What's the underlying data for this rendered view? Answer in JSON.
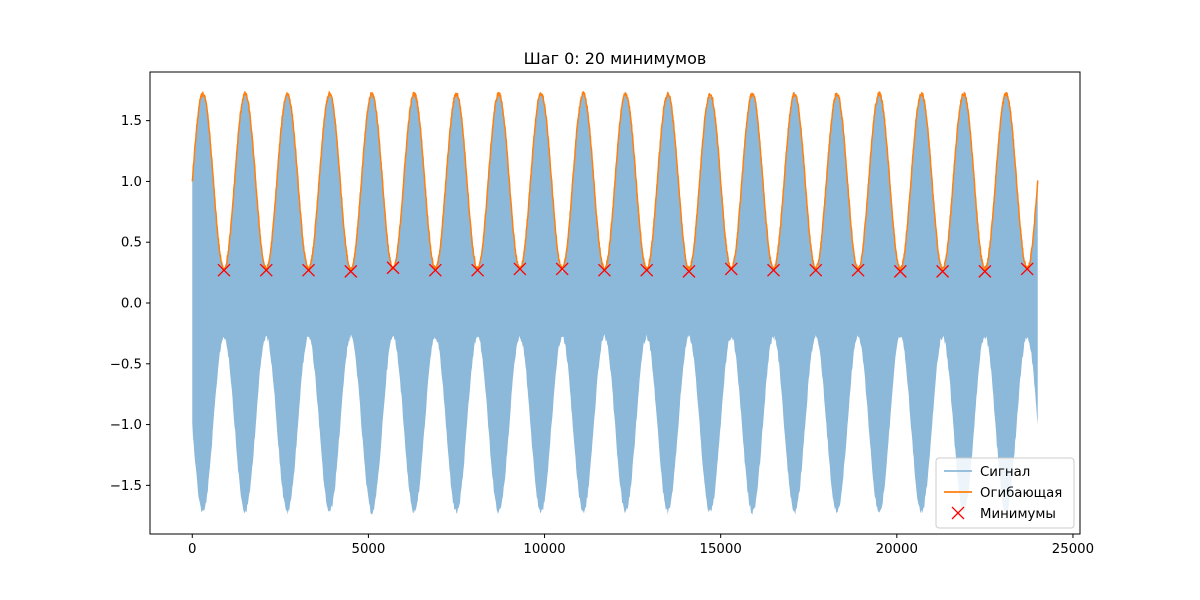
{
  "chart_data": {
    "type": "line",
    "title": "Шаг 0: 20 минимумов",
    "xlabel": "",
    "ylabel": "",
    "xlim": [
      -1200,
      25200
    ],
    "ylim": [
      -1.9,
      1.9
    ],
    "x_ticks": [
      0,
      5000,
      10000,
      15000,
      20000,
      25000
    ],
    "x_tick_labels": [
      "0",
      "5000",
      "10000",
      "15000",
      "20000",
      "25000"
    ],
    "y_ticks": [
      -1.5,
      -1.0,
      -0.5,
      0.0,
      0.5,
      1.0,
      1.5
    ],
    "y_tick_labels": [
      "−1.5",
      "−1.0",
      "−0.5",
      "0.0",
      "0.5",
      "1.0",
      "1.5"
    ],
    "grid": false,
    "legend_position": "lower-right",
    "colors": {
      "signal": "#8cb8d9",
      "envelope": "#ff7f0e",
      "minima": "#ff0000"
    },
    "series": [
      {
        "name": "Сигнал",
        "kind": "filled-oscillation",
        "x_start": 0,
        "x_end": 24000,
        "envelope_period": 1200,
        "envelope_mean": 1.0,
        "envelope_amplitude": 0.72,
        "envelope_phase": "peak-at-300"
      },
      {
        "name": "Огибающая",
        "kind": "line",
        "x_start": 0,
        "x_end": 24000,
        "period": 1200,
        "mean": 1.0,
        "amplitude": 0.72,
        "start_value": 1.0,
        "end_value": 1.0
      },
      {
        "name": "Минимумы",
        "kind": "markers",
        "marker": "x",
        "x": [
          900,
          2100,
          3300,
          4500,
          5700,
          6900,
          8100,
          9300,
          10500,
          11700,
          12900,
          14100,
          15300,
          16500,
          17700,
          18900,
          20100,
          21300,
          22500,
          23700
        ],
        "y": [
          0.27,
          0.27,
          0.27,
          0.26,
          0.29,
          0.27,
          0.27,
          0.28,
          0.28,
          0.27,
          0.27,
          0.26,
          0.28,
          0.27,
          0.27,
          0.27,
          0.26,
          0.26,
          0.26,
          0.28
        ]
      }
    ]
  }
}
